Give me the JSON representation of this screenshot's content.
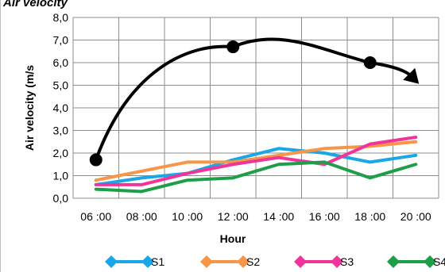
{
  "chart_data": {
    "type": "line",
    "title": "Air velocity",
    "xlabel": "Hour",
    "ylabel": "Air velocity (m/s",
    "categories": [
      "06 :00",
      "08 :00",
      "10 :00",
      "12 :00",
      "14 :00",
      "16 :00",
      "18 :00",
      "20 :00"
    ],
    "x": [
      7,
      9,
      11,
      13,
      15,
      17,
      19,
      21
    ],
    "ylim": [
      0,
      8
    ],
    "yticks": [
      "0,0",
      "1,0",
      "2,0",
      "3,0",
      "4,0",
      "5,0",
      "6,0",
      "7,0",
      "8,0"
    ],
    "grid": true,
    "legend": "bottom",
    "series": [
      {
        "name": "S1",
        "color": "#1aa7e8",
        "values": [
          0.6,
          0.9,
          1.1,
          1.7,
          2.2,
          2.0,
          1.6,
          1.9
        ]
      },
      {
        "name": "S2",
        "color": "#f79646",
        "values": [
          0.8,
          1.2,
          1.6,
          1.6,
          1.9,
          2.2,
          2.3,
          2.5
        ]
      },
      {
        "name": "S3",
        "color": "#f0359a",
        "values": [
          0.6,
          0.6,
          1.1,
          1.5,
          1.8,
          1.5,
          2.4,
          2.7
        ]
      },
      {
        "name": "S4",
        "color": "#1f9e48",
        "values": [
          0.4,
          0.3,
          0.8,
          0.9,
          1.5,
          1.6,
          0.9,
          1.5
        ]
      }
    ],
    "trend_points": [
      {
        "x": 7,
        "y": 1.7
      },
      {
        "x": 13,
        "y": 6.7
      },
      {
        "x": 19,
        "y": 6.0
      }
    ],
    "trend_end": {
      "x": 21,
      "y": 5.2
    }
  }
}
